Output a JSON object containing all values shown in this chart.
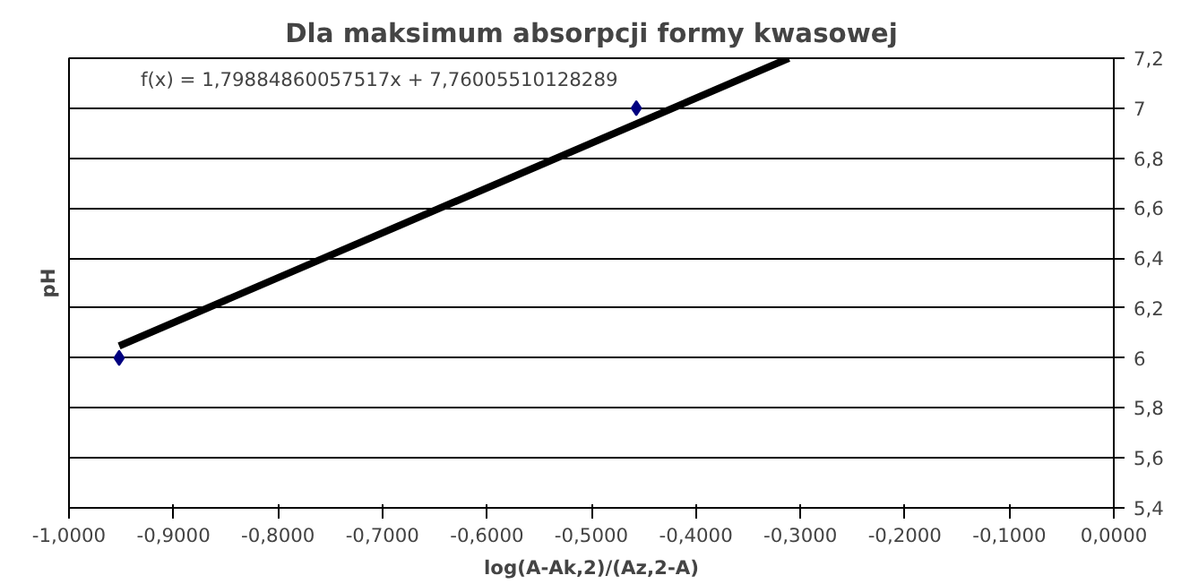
{
  "chart_data": {
    "type": "scatter",
    "title": "Dla maksimum absorpcji formy kwasowej",
    "xlabel": "log(A-Ak,2)/(Az,2-A)",
    "ylabel": "pH",
    "grid": "y",
    "series": [
      {
        "marker": "diamond",
        "color": "#000080",
        "x": [
          -0.952,
          -0.457
        ],
        "values": [
          6.0,
          7.0
        ]
      },
      {
        "type": "line",
        "marker": "none",
        "color": "#000000",
        "x": [
          -0.952,
          -0.311
        ],
        "values": [
          6.048,
          7.2
        ]
      }
    ],
    "annotations": [
      "f(x) = 1,79884860057517x + 7,76005510128289"
    ],
    "xlim": [
      -1.0,
      0.0
    ],
    "xticks": [
      {
        "value": -1.0,
        "label": "-1,0000"
      },
      {
        "value": -0.9,
        "label": "-0,9000"
      },
      {
        "value": -0.8,
        "label": "-0,8000"
      },
      {
        "value": -0.7,
        "label": "-0,7000"
      },
      {
        "value": -0.6,
        "label": "-0,6000"
      },
      {
        "value": -0.5,
        "label": "-0,5000"
      },
      {
        "value": -0.4,
        "label": "-0,4000"
      },
      {
        "value": -0.3,
        "label": "-0,3000"
      },
      {
        "value": -0.2,
        "label": "-0,2000"
      },
      {
        "value": -0.1,
        "label": "-0,1000"
      },
      {
        "value": 0.0,
        "label": "0,0000"
      }
    ],
    "ylim": [
      5.4,
      7.2
    ],
    "yticks": [
      {
        "value": 5.4,
        "label": "5,4"
      },
      {
        "value": 5.6,
        "label": "5,6"
      },
      {
        "value": 5.8,
        "label": "5,8"
      },
      6,
      {
        "value": 6.2,
        "label": "6,2"
      },
      {
        "value": 6.4,
        "label": "6,4"
      },
      {
        "value": 6.6,
        "label": "6,6"
      },
      {
        "value": 6.8,
        "label": "6,8"
      },
      7,
      {
        "value": 7.2,
        "label": "7,2"
      }
    ]
  }
}
